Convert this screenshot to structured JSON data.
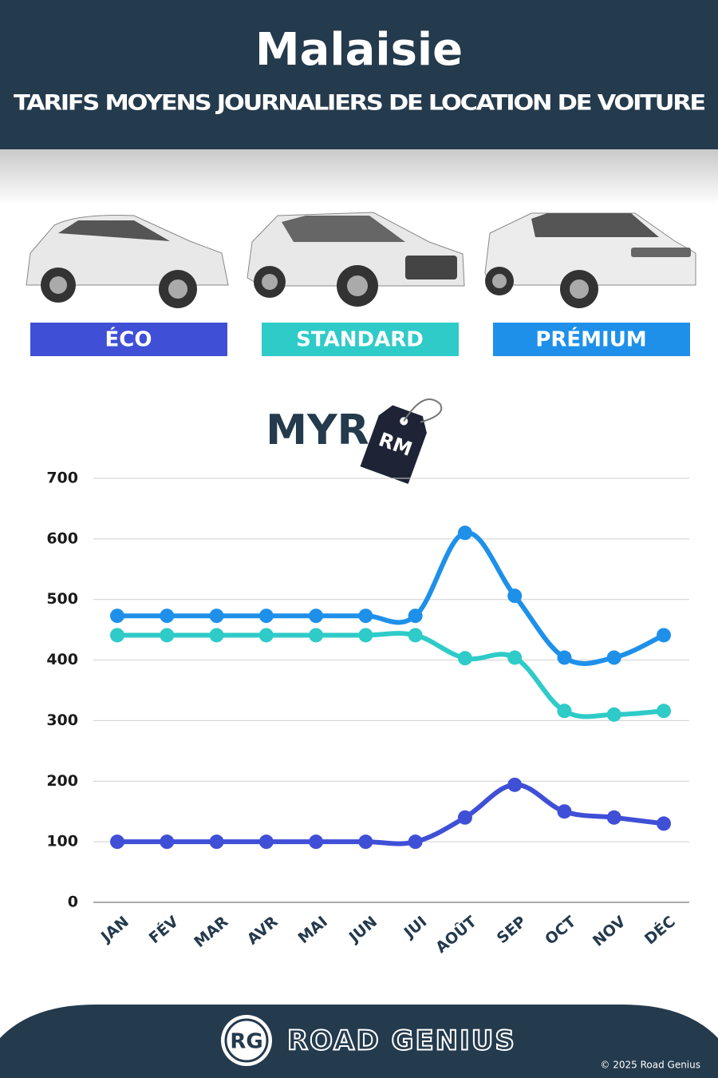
{
  "chart_data": {
    "type": "line",
    "title": "Malaisie",
    "subtitle": "TARIFS MOYENS JOURNALIERS DE LOCATION DE VOITURE",
    "y_label": "MYR",
    "tag_text": "RM",
    "categories": [
      "JAN",
      "FÉV",
      "MAR",
      "AVR",
      "MAI",
      "JUN",
      "JUI",
      "AOÛT",
      "SEP",
      "OCT",
      "NOV",
      "DÉC"
    ],
    "series": [
      {
        "name": "ÉCO",
        "color": "#3f4fd6",
        "values": [
          100,
          100,
          100,
          100,
          100,
          100,
          100,
          140,
          194,
          150,
          140,
          130
        ]
      },
      {
        "name": "STANDARD",
        "color": "#2ecbc8",
        "values": [
          441,
          441,
          441,
          441,
          441,
          441,
          441,
          403,
          404,
          316,
          310,
          316
        ]
      },
      {
        "name": "PRÉMIUM",
        "color": "#1e90ea",
        "values": [
          473,
          473,
          473,
          473,
          473,
          473,
          473,
          610,
          506,
          404,
          404,
          441
        ]
      }
    ],
    "ylim": [
      0,
      700
    ],
    "yticks": [
      0,
      100,
      200,
      300,
      400,
      500,
      600,
      700
    ],
    "grid": true
  },
  "footer": {
    "logo": "RG",
    "brand": "ROAD GENIUS",
    "copyright": "© 2025 Road Genius"
  }
}
